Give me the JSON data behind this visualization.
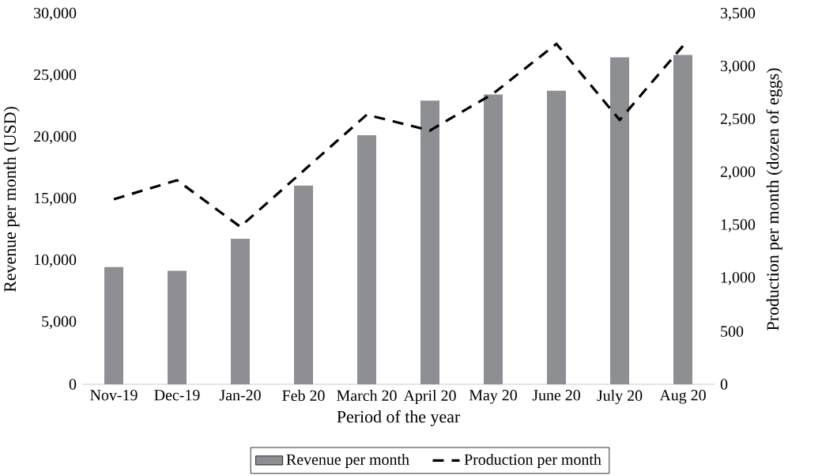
{
  "chart_data": {
    "type": "bar",
    "xlabel": "Period of the year",
    "ylabel": "Revenue per month (USD)",
    "y2label": "Production per month (dozen of eggs)",
    "categories": [
      "Nov-19",
      "Dec-19",
      "Jan-20",
      "Feb 20",
      "March 20",
      "April 20",
      "May 20",
      "June 20",
      "July 20",
      "Aug 20"
    ],
    "series": [
      {
        "name": "Revenue per month",
        "color": "#8e8f93",
        "values": [
          9500,
          9200,
          11800,
          16100,
          20200,
          23000,
          23500,
          23800,
          26500,
          26700
        ]
      },
      {
        "name": "Production per month",
        "type": "line",
        "axis": "y2",
        "color": "#000000",
        "line_style": "dashed",
        "values": [
          1750,
          1930,
          1490,
          2020,
          2550,
          2400,
          2750,
          3220,
          2500,
          3200
        ]
      }
    ],
    "ylim": [
      0,
      30000
    ],
    "yticks": [
      0,
      {
        "value": 5000,
        "label": "5,000"
      },
      {
        "value": 10000,
        "label": "10,000"
      },
      {
        "value": 15000,
        "label": "15,000"
      },
      {
        "value": 20000,
        "label": "20,000"
      },
      {
        "value": 25000,
        "label": "25,000"
      },
      {
        "value": 30000,
        "label": "30,000"
      }
    ],
    "y2lim": [
      0,
      3500
    ],
    "y2ticks": [
      0,
      500,
      {
        "value": 1000,
        "label": "1,000"
      },
      {
        "value": 1500,
        "label": "1,500"
      },
      {
        "value": 2000,
        "label": "2,000"
      },
      {
        "value": 2500,
        "label": "2,500"
      },
      {
        "value": 3000,
        "label": "3,000"
      },
      {
        "value": 3500,
        "label": "3,500"
      }
    ],
    "grid": false,
    "legend": "bottom",
    "marker": "none"
  }
}
